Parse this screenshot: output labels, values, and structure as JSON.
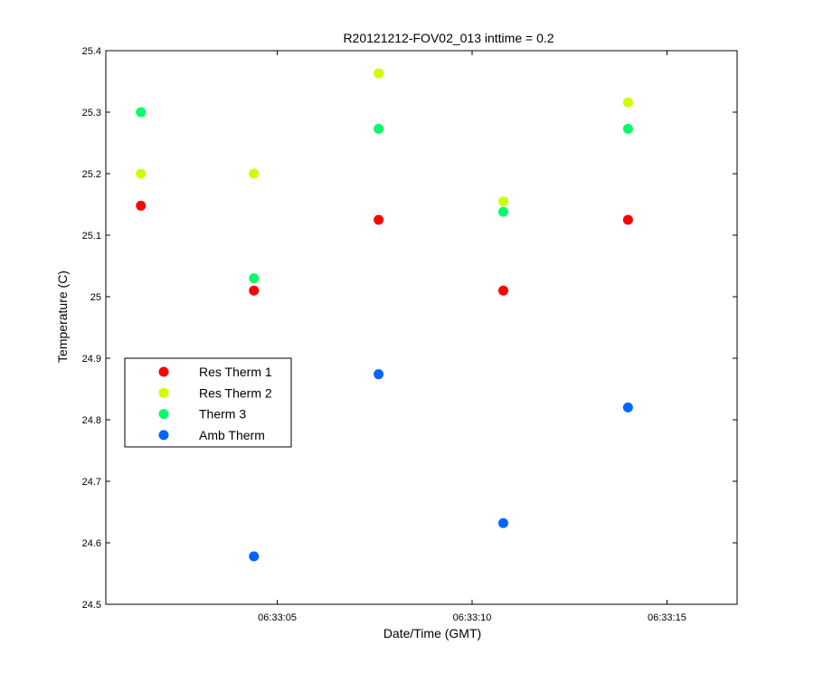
{
  "chart_data": {
    "type": "scatter",
    "title": "R20121212-FOV02_013 inttime = 0.2",
    "xlabel": "Date/Time (GMT)",
    "ylabel": "Temperature (C)",
    "x_unit": "time of day (GMT)",
    "xlim": [
      "06:33:00.6",
      "06:33:16.8"
    ],
    "ylim": [
      24.5,
      25.4
    ],
    "x_ticks": [
      "06:33:05",
      "06:33:10",
      "06:33:15"
    ],
    "y_ticks": [
      "24.5",
      "24.6",
      "24.7",
      "24.8",
      "24.9",
      "25",
      "25.1",
      "25.2",
      "25.3",
      "25.4"
    ],
    "x": [
      "06:33:01.5",
      "06:33:04.4",
      "06:33:07.6",
      "06:33:10.8",
      "06:33:14.0"
    ],
    "series": [
      {
        "name": "Res Therm 1",
        "color": "#ff0000",
        "values": [
          25.148,
          25.01,
          25.125,
          25.01,
          25.125
        ]
      },
      {
        "name": "Res Therm 2",
        "color": "#ccff00",
        "values": [
          25.2,
          25.2,
          25.363,
          25.155,
          25.316
        ]
      },
      {
        "name": "Therm 3",
        "color": "#00ff66",
        "values": [
          25.3,
          25.03,
          25.273,
          25.138,
          25.273
        ]
      },
      {
        "name": "Amb Therm",
        "color": "#0066ff",
        "values": [
          null,
          24.578,
          24.874,
          24.632,
          24.82
        ]
      }
    ],
    "grid": false,
    "legend_position": "middle-left"
  }
}
